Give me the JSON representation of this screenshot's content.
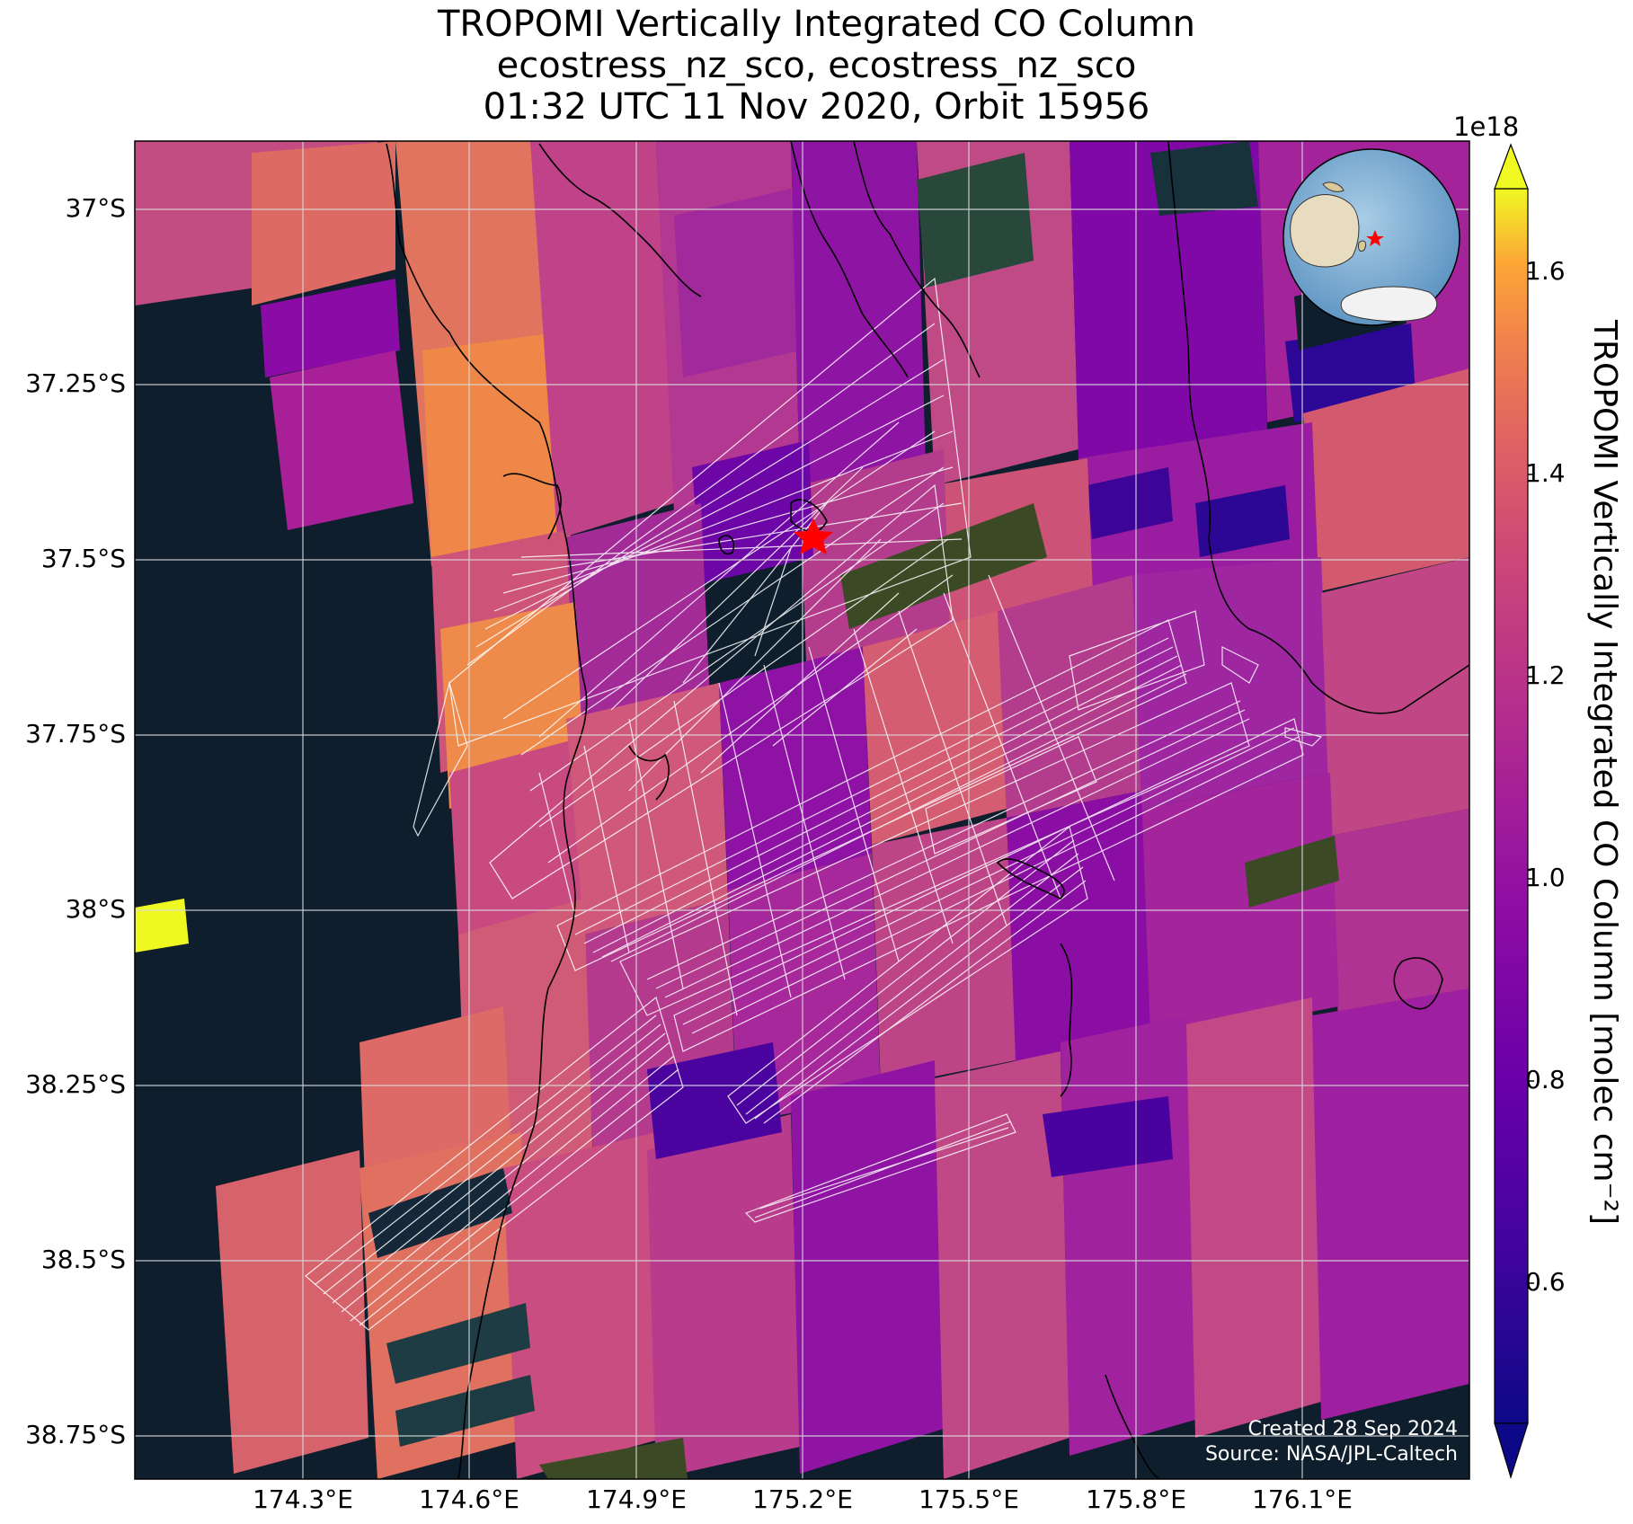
{
  "title": {
    "line1": "TROPOMI Vertically Integrated CO Column",
    "line2": "ecostress_nz_sco, ecostress_nz_sco",
    "line3": "01:32 UTC 11 Nov 2020, Orbit 15956"
  },
  "map": {
    "lat_labels": [
      "37°S",
      "37.25°S",
      "37.5°S",
      "37.75°S",
      "38°S",
      "38.25°S",
      "38.5°S",
      "38.75°S"
    ],
    "lon_labels": [
      "174.3°E",
      "174.6°E",
      "174.9°E",
      "175.2°E",
      "175.5°E",
      "175.8°E",
      "176.1°E"
    ],
    "marker": "red-star",
    "ocean_color": "#0e1e2c",
    "gridline_color": "#d9d9d9",
    "inset_globe": {
      "icon": "globe-icon",
      "marker": "red-star"
    }
  },
  "colorbar": {
    "label": "TROPOMI Vertically Integrated CO Column [molec cm⁻²]",
    "exponent": "1e18",
    "ticks": [
      "0.6",
      "0.8",
      "1.0",
      "1.2",
      "1.4",
      "1.6"
    ],
    "colormap": "plasma",
    "extend": "both"
  },
  "credit": {
    "created": "Created 28 Sep 2024",
    "source": "Source: NASA/JPL-Caltech"
  }
}
